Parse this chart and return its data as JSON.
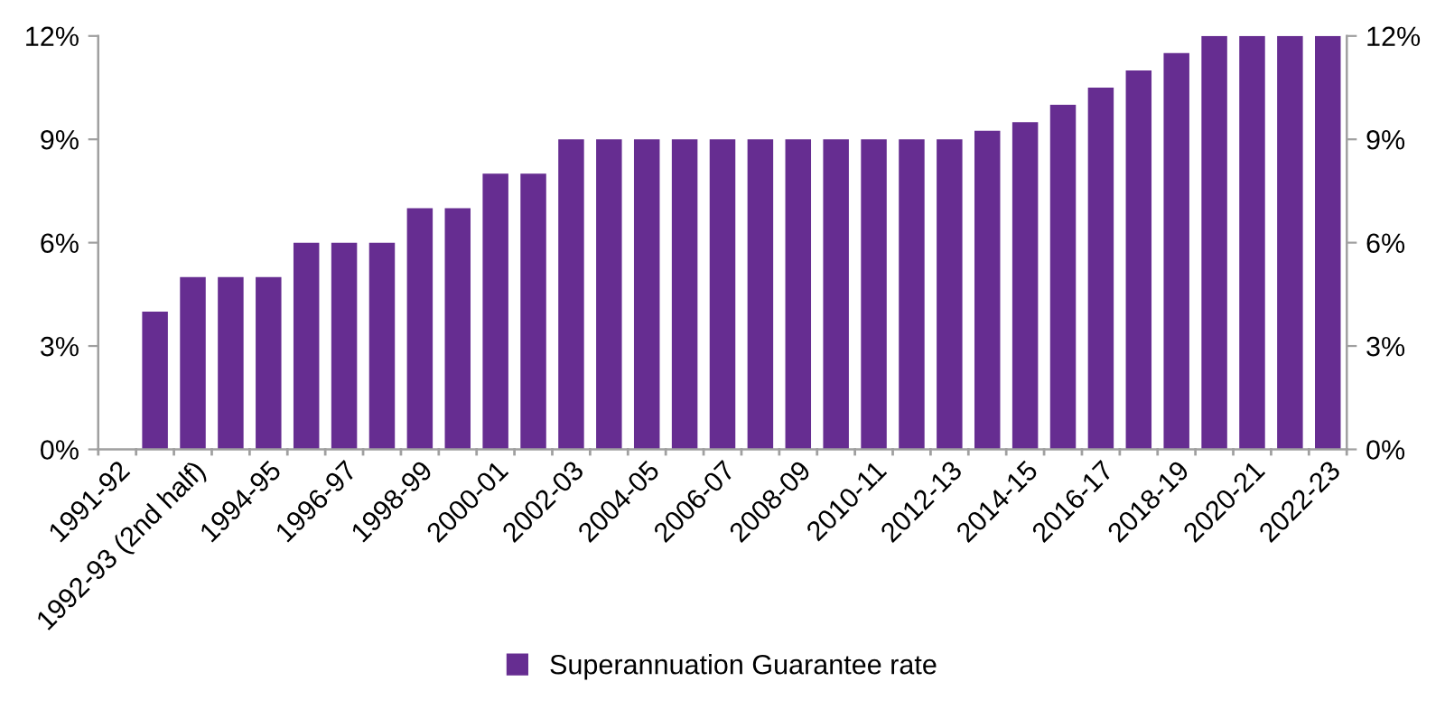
{
  "chart_data": {
    "type": "bar",
    "categories": [
      "1991-92",
      null,
      "1992-93 (2nd half)",
      null,
      "1994-95",
      null,
      "1996-97",
      null,
      "1998-99",
      null,
      "2000-01",
      null,
      "2002-03",
      null,
      "2004-05",
      null,
      "2006-07",
      null,
      "2008-09",
      null,
      "2010-11",
      null,
      "2012-13",
      null,
      "2014-15",
      null,
      "2016-17",
      null,
      "2018-19",
      null,
      "2020-21",
      null,
      "2022-23"
    ],
    "series": [
      {
        "name": "Superannuation Guarantee rate",
        "color": "#662d91",
        "values": [
          null,
          4,
          5,
          5,
          5,
          6,
          6,
          6,
          7,
          7,
          8,
          8,
          9,
          9,
          9,
          9,
          9,
          9,
          9,
          9,
          9,
          9,
          9,
          9.25,
          9.5,
          10,
          10.5,
          11,
          11.5,
          12,
          12,
          12,
          12
        ]
      }
    ],
    "ylim": [
      0,
      12
    ],
    "yticks": [
      {
        "value": 0,
        "label": "0%"
      },
      {
        "value": 3,
        "label": "3%"
      },
      {
        "value": 6,
        "label": "6%"
      },
      {
        "value": 9,
        "label": "9%"
      },
      {
        "value": 12,
        "label": "12%"
      }
    ],
    "y2lim": [
      0,
      12
    ],
    "y2ticks": [
      {
        "value": 0,
        "label": "0%"
      },
      {
        "value": 3,
        "label": "3%"
      },
      {
        "value": 6,
        "label": "6%"
      },
      {
        "value": 9,
        "label": "9%"
      },
      {
        "value": 12,
        "label": "12%"
      }
    ],
    "grid": false,
    "legend": "bottom"
  }
}
